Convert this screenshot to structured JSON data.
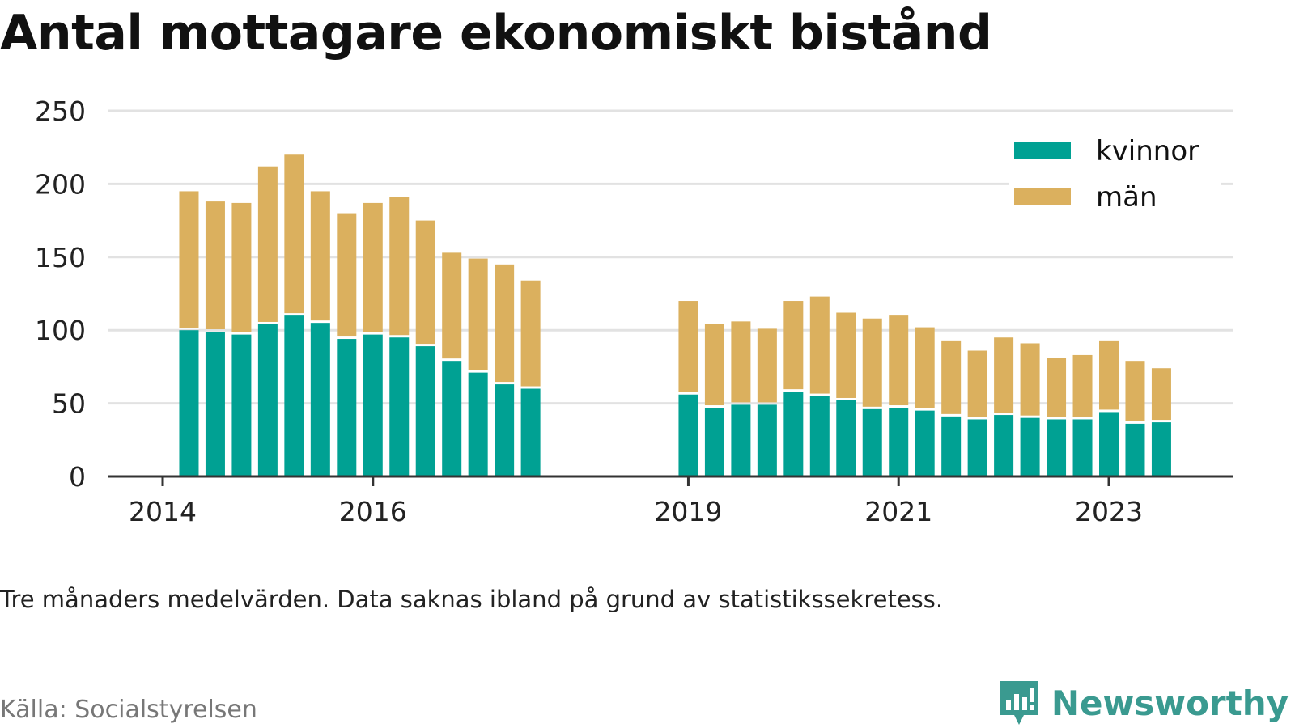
{
  "title": "Antal mottagare ekonomiskt bistånd",
  "note": "Tre månaders medelvärden. Data saknas ibland på grund av statistikssekretess.",
  "source": "Källa: Socialstyrelsen",
  "brand": "Newsworthy",
  "colors": {
    "kvinnor": "#00a193",
    "man": "#dbb05e",
    "grid": "#e2e2e2",
    "axis": "#333333",
    "brand": "#3a9a90"
  },
  "chart_data": {
    "type": "bar",
    "stacked": true,
    "ylim": [
      0,
      250
    ],
    "yticks": [
      "0",
      "50",
      "100",
      "150",
      "200",
      "250"
    ],
    "xticks": [
      "2014",
      "2016",
      "2019",
      "2021",
      "2023"
    ],
    "xtick_positions": [
      2014,
      2016,
      2019,
      2021,
      2023
    ],
    "x": [
      2014.25,
      2014.5,
      2014.75,
      2015.0,
      2015.25,
      2015.5,
      2015.75,
      2016.0,
      2016.25,
      2016.5,
      2016.75,
      2017.0,
      2017.25,
      2017.5,
      2019.0,
      2019.25,
      2019.5,
      2019.75,
      2020.0,
      2020.25,
      2020.5,
      2020.75,
      2021.0,
      2021.25,
      2021.5,
      2021.75,
      2022.0,
      2022.25,
      2022.5,
      2022.75,
      2023.0,
      2023.25,
      2023.5
    ],
    "series": [
      {
        "name": "kvinnor",
        "values": [
          100,
          99,
          97,
          104,
          110,
          105,
          94,
          97,
          95,
          89,
          79,
          71,
          63,
          60,
          56,
          47,
          49,
          49,
          58,
          55,
          52,
          46,
          47,
          45,
          41,
          39,
          42,
          40,
          39,
          39,
          44,
          36,
          37
        ]
      },
      {
        "name": "män",
        "values": [
          95,
          89,
          90,
          108,
          110,
          90,
          86,
          90,
          96,
          86,
          74,
          78,
          82,
          74,
          64,
          57,
          57,
          52,
          62,
          68,
          60,
          62,
          63,
          57,
          52,
          47,
          53,
          51,
          42,
          44,
          49,
          43,
          37
        ]
      }
    ],
    "legend": {
      "position": "top-right",
      "entries": [
        "kvinnor",
        "män"
      ]
    }
  }
}
